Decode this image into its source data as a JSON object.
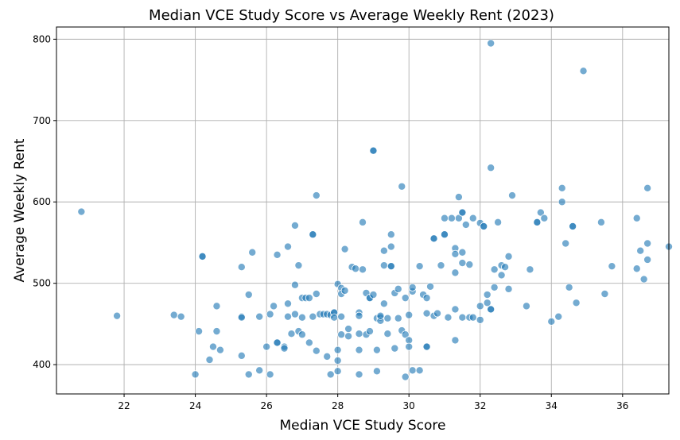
{
  "chart_data": {
    "type": "scatter",
    "title": "Median VCE Study Score vs Average Weekly Rent (2023)",
    "xlabel": "Median VCE Study Score",
    "ylabel": "Average Weekly Rent",
    "xlim": [
      20.1,
      37.3
    ],
    "ylim": [
      364,
      815
    ],
    "xticks": [
      22,
      24,
      26,
      28,
      30,
      32,
      34,
      36
    ],
    "yticks": [
      400,
      500,
      600,
      700,
      800
    ],
    "grid": true,
    "point_color": "#1f77b4",
    "point_opacity": 0.62,
    "points": [
      [
        20.8,
        588
      ],
      [
        21.8,
        460
      ],
      [
        23.4,
        461
      ],
      [
        23.6,
        459
      ],
      [
        24.0,
        388
      ],
      [
        24.1,
        441
      ],
      [
        24.2,
        533
      ],
      [
        24.2,
        533
      ],
      [
        24.4,
        406
      ],
      [
        24.5,
        422
      ],
      [
        24.6,
        472
      ],
      [
        24.6,
        441
      ],
      [
        24.7,
        418
      ],
      [
        25.3,
        520
      ],
      [
        25.3,
        459
      ],
      [
        25.3,
        458
      ],
      [
        25.3,
        411
      ],
      [
        25.5,
        486
      ],
      [
        25.5,
        388
      ],
      [
        25.6,
        538
      ],
      [
        25.8,
        459
      ],
      [
        25.8,
        393
      ],
      [
        26.0,
        422
      ],
      [
        26.1,
        462
      ],
      [
        26.1,
        388
      ],
      [
        26.2,
        472
      ],
      [
        26.3,
        535
      ],
      [
        26.3,
        427
      ],
      [
        26.3,
        427
      ],
      [
        26.5,
        422
      ],
      [
        26.5,
        420
      ],
      [
        26.6,
        545
      ],
      [
        26.6,
        475
      ],
      [
        26.6,
        459
      ],
      [
        26.7,
        438
      ],
      [
        26.8,
        571
      ],
      [
        26.8,
        498
      ],
      [
        26.8,
        462
      ],
      [
        26.9,
        522
      ],
      [
        26.9,
        441
      ],
      [
        27.0,
        482
      ],
      [
        27.0,
        458
      ],
      [
        27.0,
        437
      ],
      [
        27.1,
        482
      ],
      [
        27.2,
        482
      ],
      [
        27.2,
        427
      ],
      [
        27.3,
        459
      ],
      [
        27.3,
        560
      ],
      [
        27.3,
        560
      ],
      [
        27.4,
        608
      ],
      [
        27.4,
        487
      ],
      [
        27.4,
        417
      ],
      [
        27.5,
        462
      ],
      [
        27.6,
        462
      ],
      [
        27.7,
        462
      ],
      [
        27.7,
        410
      ],
      [
        27.8,
        461
      ],
      [
        27.8,
        388
      ],
      [
        27.9,
        464
      ],
      [
        27.9,
        464
      ],
      [
        27.9,
        458
      ],
      [
        28.0,
        418
      ],
      [
        28.0,
        405
      ],
      [
        28.0,
        392
      ],
      [
        28.0,
        499
      ],
      [
        28.1,
        494
      ],
      [
        28.1,
        487
      ],
      [
        28.1,
        437
      ],
      [
        28.1,
        459
      ],
      [
        28.2,
        542
      ],
      [
        28.2,
        491
      ],
      [
        28.3,
        444
      ],
      [
        28.3,
        435
      ],
      [
        28.4,
        520
      ],
      [
        28.5,
        518
      ],
      [
        28.6,
        464
      ],
      [
        28.6,
        460
      ],
      [
        28.6,
        438
      ],
      [
        28.6,
        418
      ],
      [
        28.6,
        388
      ],
      [
        28.7,
        517
      ],
      [
        28.7,
        575
      ],
      [
        28.8,
        488
      ],
      [
        28.8,
        437
      ],
      [
        28.9,
        441
      ],
      [
        28.9,
        482
      ],
      [
        28.9,
        482
      ],
      [
        29.0,
        663
      ],
      [
        29.0,
        663
      ],
      [
        29.0,
        486
      ],
      [
        29.1,
        457
      ],
      [
        29.1,
        418
      ],
      [
        29.1,
        392
      ],
      [
        29.2,
        458
      ],
      [
        29.2,
        454
      ],
      [
        29.2,
        460
      ],
      [
        29.3,
        522
      ],
      [
        29.3,
        475
      ],
      [
        29.3,
        540
      ],
      [
        29.4,
        457
      ],
      [
        29.4,
        438
      ],
      [
        29.5,
        560
      ],
      [
        29.5,
        545
      ],
      [
        29.5,
        521
      ],
      [
        29.5,
        521
      ],
      [
        29.6,
        420
      ],
      [
        29.6,
        488
      ],
      [
        29.7,
        457
      ],
      [
        29.7,
        493
      ],
      [
        29.8,
        619
      ],
      [
        29.8,
        442
      ],
      [
        29.9,
        482
      ],
      [
        29.9,
        437
      ],
      [
        29.9,
        385
      ],
      [
        30.0,
        430
      ],
      [
        30.0,
        422
      ],
      [
        30.0,
        461
      ],
      [
        30.1,
        490
      ],
      [
        30.1,
        495
      ],
      [
        30.1,
        393
      ],
      [
        30.3,
        521
      ],
      [
        30.3,
        393
      ],
      [
        30.4,
        486
      ],
      [
        30.5,
        422
      ],
      [
        30.5,
        422
      ],
      [
        30.5,
        482
      ],
      [
        30.5,
        463
      ],
      [
        30.6,
        496
      ],
      [
        30.7,
        460
      ],
      [
        30.7,
        555
      ],
      [
        30.7,
        555
      ],
      [
        30.8,
        463
      ],
      [
        30.9,
        522
      ],
      [
        31.0,
        580
      ],
      [
        31.0,
        560
      ],
      [
        31.0,
        560
      ],
      [
        31.1,
        458
      ],
      [
        31.2,
        580
      ],
      [
        31.3,
        543
      ],
      [
        31.3,
        536
      ],
      [
        31.3,
        513
      ],
      [
        31.3,
        468
      ],
      [
        31.3,
        430
      ],
      [
        31.4,
        580
      ],
      [
        31.4,
        606
      ],
      [
        31.5,
        587
      ],
      [
        31.5,
        587
      ],
      [
        31.5,
        458
      ],
      [
        31.5,
        538
      ],
      [
        31.5,
        525
      ],
      [
        31.6,
        572
      ],
      [
        31.7,
        523
      ],
      [
        31.7,
        458
      ],
      [
        31.8,
        458
      ],
      [
        31.8,
        580
      ],
      [
        32.0,
        472
      ],
      [
        32.0,
        455
      ],
      [
        32.0,
        574
      ],
      [
        32.1,
        570
      ],
      [
        32.1,
        570
      ],
      [
        32.2,
        486
      ],
      [
        32.2,
        476
      ],
      [
        32.3,
        795
      ],
      [
        32.3,
        642
      ],
      [
        32.3,
        468
      ],
      [
        32.3,
        468
      ],
      [
        32.4,
        517
      ],
      [
        32.4,
        495
      ],
      [
        32.5,
        575
      ],
      [
        32.6,
        522
      ],
      [
        32.6,
        510
      ],
      [
        32.7,
        520
      ],
      [
        32.8,
        533
      ],
      [
        32.8,
        493
      ],
      [
        32.9,
        608
      ],
      [
        33.3,
        472
      ],
      [
        33.4,
        517
      ],
      [
        33.6,
        575
      ],
      [
        33.6,
        575
      ],
      [
        33.7,
        587
      ],
      [
        33.8,
        580
      ],
      [
        34.0,
        453
      ],
      [
        34.2,
        459
      ],
      [
        34.3,
        617
      ],
      [
        34.3,
        600
      ],
      [
        34.4,
        549
      ],
      [
        34.5,
        495
      ],
      [
        34.6,
        570
      ],
      [
        34.6,
        570
      ],
      [
        34.7,
        476
      ],
      [
        34.9,
        761
      ],
      [
        35.4,
        575
      ],
      [
        35.5,
        487
      ],
      [
        35.7,
        521
      ],
      [
        36.4,
        580
      ],
      [
        36.4,
        518
      ],
      [
        36.5,
        540
      ],
      [
        36.6,
        505
      ],
      [
        36.7,
        617
      ],
      [
        36.7,
        549
      ],
      [
        36.7,
        529
      ],
      [
        37.3,
        545
      ]
    ]
  }
}
